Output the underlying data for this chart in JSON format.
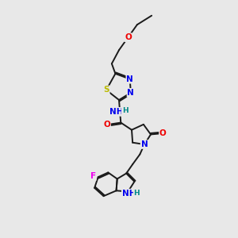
{
  "bg_color": "#e8e8e8",
  "bond_color": "#1a1a1a",
  "N_color": "#0000ee",
  "O_color": "#ee0000",
  "S_color": "#bbbb00",
  "F_color": "#ee00ee",
  "H_color": "#008888",
  "lw": 1.4,
  "fs": 7.5,
  "xlim": [
    0,
    10
  ],
  "ylim": [
    0,
    13
  ]
}
